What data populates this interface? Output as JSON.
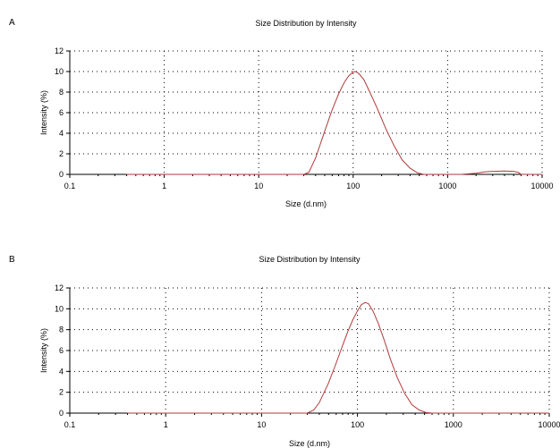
{
  "panels": [
    {
      "letter": "A"
    },
    {
      "letter": "B"
    }
  ],
  "colors": {
    "curve": "#b03a3a",
    "axis": "#000000",
    "grid": "#000000"
  },
  "chart_data": [
    {
      "type": "line",
      "title": "Size Distribution by Intensity",
      "xlabel": "Size (d.nm)",
      "ylabel": "Intensity (%)",
      "xscale": "log",
      "xlim": [
        0.1,
        10000
      ],
      "ylim": [
        0,
        12
      ],
      "xticks": [
        0.1,
        1,
        10,
        100,
        1000,
        10000
      ],
      "xtick_labels": [
        "0.1",
        "1",
        "10",
        "100",
        "1000",
        "10000"
      ],
      "yticks": [
        0,
        2,
        4,
        6,
        8,
        10,
        12
      ],
      "ytick_labels": [
        "0",
        "2",
        "4",
        "6",
        "8",
        "10",
        "12"
      ],
      "grid": true,
      "series": [
        {
          "x": [
            0.4,
            30,
            34,
            40,
            50,
            60,
            70,
            80,
            90,
            100,
            106,
            115,
            130,
            150,
            180,
            220,
            270,
            330,
            400,
            480,
            560,
            640,
            1400,
            2000,
            2500,
            3000,
            4000,
            5000,
            5600,
            6000,
            10000
          ],
          "y": [
            0,
            0,
            0.2,
            1.6,
            4.2,
            6.3,
            7.8,
            8.9,
            9.6,
            9.95,
            10.0,
            9.8,
            9.2,
            8.0,
            6.4,
            4.5,
            2.8,
            1.4,
            0.6,
            0.15,
            0,
            0,
            0,
            0.1,
            0.25,
            0.3,
            0.32,
            0.3,
            0.2,
            0,
            0
          ]
        }
      ]
    },
    {
      "type": "line",
      "title": "Size Distribution by Intensity",
      "xlabel": "Size (d.nm)",
      "ylabel": "Intensity (%)",
      "xscale": "log",
      "xlim": [
        0.1,
        10000
      ],
      "ylim": [
        0,
        12
      ],
      "xticks": [
        0.1,
        1,
        10,
        100,
        1000,
        10000
      ],
      "xtick_labels": [
        "0.1",
        "1",
        "10",
        "100",
        "1000",
        "10000"
      ],
      "yticks": [
        0,
        2,
        4,
        6,
        8,
        10,
        12
      ],
      "ytick_labels": [
        "0",
        "2",
        "4",
        "6",
        "8",
        "10",
        "12"
      ],
      "grid": true,
      "series": [
        {
          "x": [
            0.4,
            30,
            35,
            40,
            50,
            60,
            70,
            80,
            90,
            100,
            110,
            120,
            130,
            145,
            165,
            190,
            220,
            260,
            310,
            370,
            440,
            520,
            600,
            10000
          ],
          "y": [
            0,
            0,
            0.3,
            1.0,
            2.9,
            4.8,
            6.5,
            7.9,
            9.0,
            9.8,
            10.4,
            10.6,
            10.5,
            9.8,
            8.6,
            7.0,
            5.2,
            3.4,
            1.9,
            0.8,
            0.3,
            0.05,
            0,
            0
          ]
        }
      ]
    }
  ]
}
